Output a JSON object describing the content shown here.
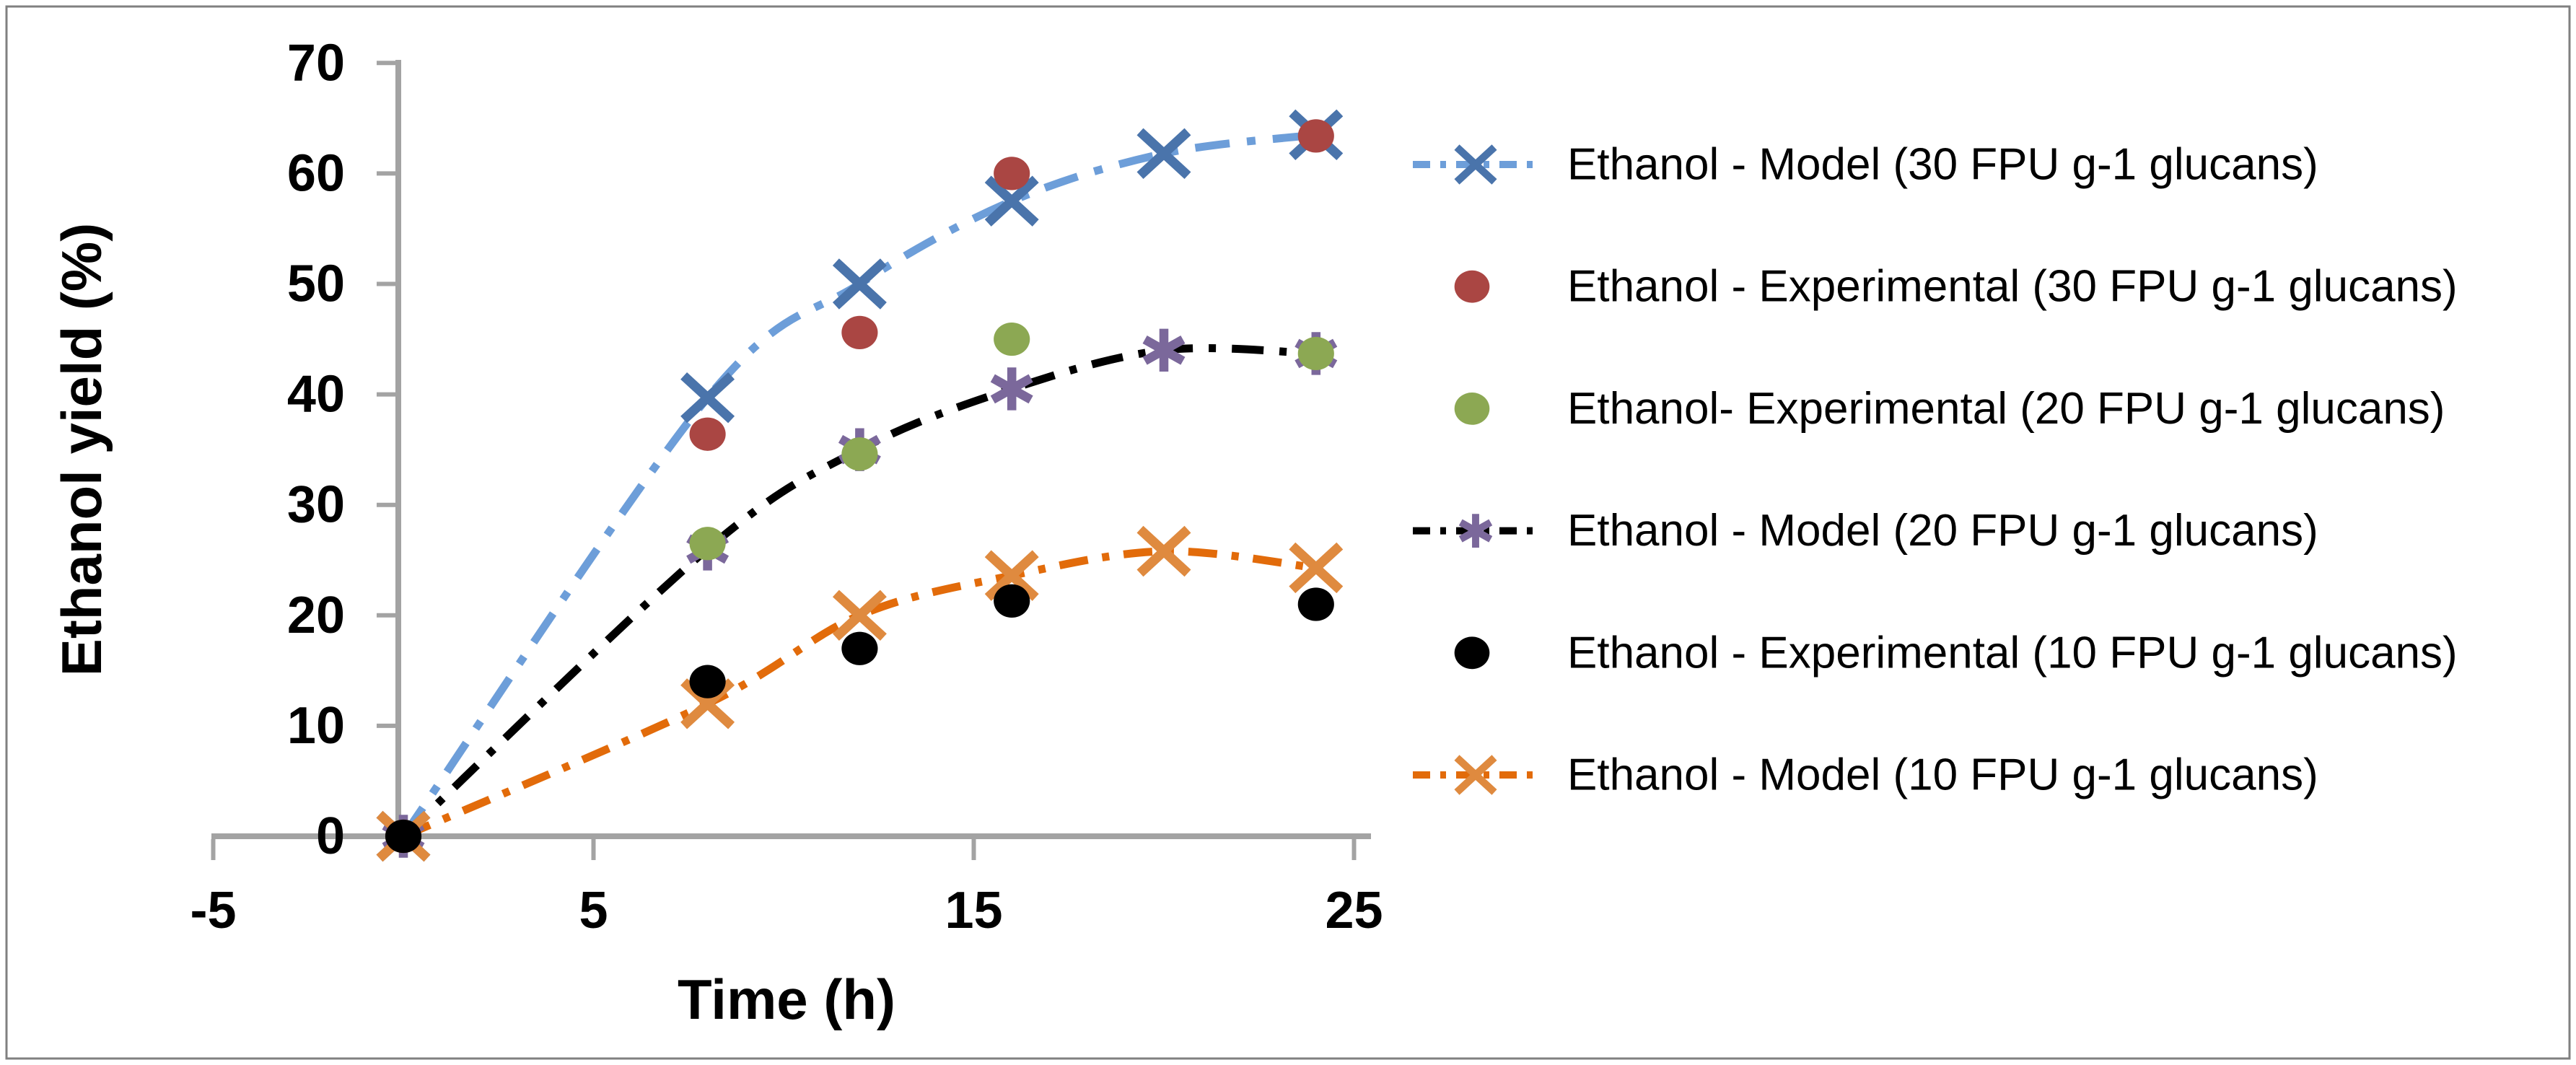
{
  "frame": {
    "background": "#FFFFFF",
    "border_color": "#808080",
    "axis_color": "#A3A3A3",
    "text_color": "#000000"
  },
  "chart_data": {
    "type": "line",
    "title": "",
    "xlabel": "Time (h)",
    "ylabel": "Ethanol yield (%)",
    "xlim": [
      -5,
      25
    ],
    "ylim": [
      0,
      70
    ],
    "x_ticks": [
      -5,
      5,
      15,
      25
    ],
    "y_ticks": [
      0,
      10,
      20,
      30,
      40,
      50,
      60,
      70
    ],
    "grid": false,
    "legend_position": "right",
    "series": [
      {
        "name": "Ethanol - Model (30 FPU g-1 glucans)",
        "kind": "model",
        "marker": "x-cross",
        "marker_color": "#4A74AB",
        "line": true,
        "line_color": "#6D9ED9",
        "dash": "48 24 12 24",
        "x": [
          0,
          8,
          12,
          16,
          20,
          24
        ],
        "y": [
          0,
          39.7,
          50,
          57.5,
          61.8,
          63.5
        ]
      },
      {
        "name": "Ethanol - Experimental (30 FPU g-1 glucans)",
        "kind": "experimental",
        "marker": "circle",
        "marker_color": "#AA4643",
        "line": false,
        "x": [
          0,
          8,
          12,
          16,
          24
        ],
        "y": [
          0,
          36.4,
          45.6,
          60,
          63.4
        ]
      },
      {
        "name": "Ethanol- Experimental (20 FPU g-1 glucans)",
        "kind": "experimental",
        "marker": "circle",
        "marker_color": "#8CA853",
        "line": false,
        "x": [
          0,
          8,
          12,
          16,
          24
        ],
        "y": [
          0,
          26.5,
          34.6,
          45,
          43.7
        ]
      },
      {
        "name": "Ethanol - Model (20 FPU g-1 glucans)",
        "kind": "model",
        "marker": "asterisk",
        "marker_color": "#7B689B",
        "line": true,
        "line_color": "#000000",
        "dash": "44 22 10 22",
        "x": [
          0,
          8,
          12,
          16,
          20,
          24
        ],
        "y": [
          0,
          26,
          35,
          40.5,
          44,
          43.7
        ]
      },
      {
        "name": "Ethanol - Experimental (10 FPU g-1 glucans)",
        "kind": "experimental",
        "marker": "circle",
        "marker_color": "#000000",
        "line": false,
        "x": [
          0,
          8,
          12,
          16,
          24
        ],
        "y": [
          0,
          14,
          17,
          21.3,
          21
        ]
      },
      {
        "name": "Ethanol - Model (10 FPU g-1 glucans)",
        "kind": "model",
        "marker": "x-cross",
        "marker_color": "#DF8A3F",
        "line": true,
        "line_color": "#E26B0A",
        "dash": "40 20 10 20",
        "x": [
          0,
          8,
          12,
          16,
          20,
          24
        ],
        "y": [
          0,
          12,
          20,
          23.6,
          25.8,
          24.3
        ]
      }
    ]
  }
}
